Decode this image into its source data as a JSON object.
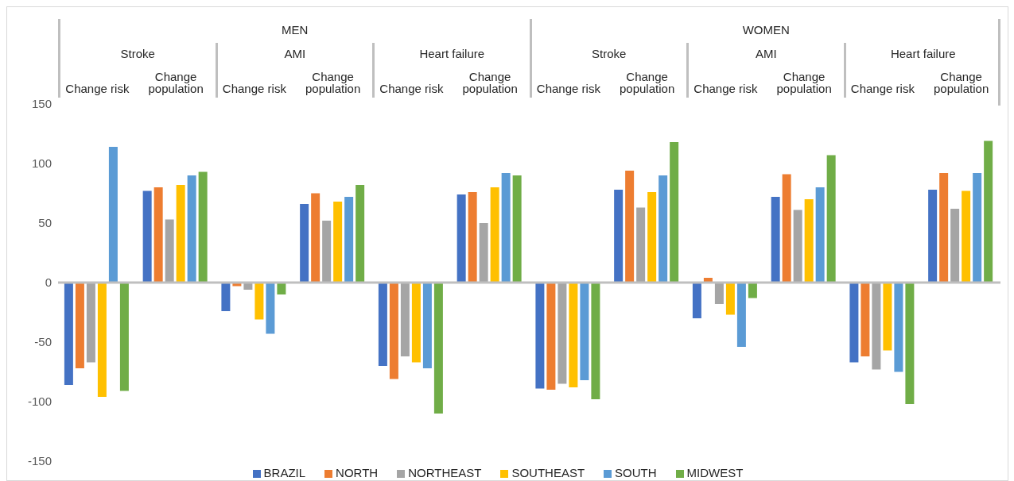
{
  "chart_data": {
    "type": "bar",
    "categories": [
      "Change risk",
      "Change population",
      "Change risk",
      "Change population",
      "Change risk",
      "Change population",
      "Change risk",
      "Change population",
      "Change risk",
      "Change population",
      "Change risk",
      "Change population"
    ],
    "annotations": [
      "MEN",
      "WOMEN",
      "Stroke",
      "AMI",
      "Heart failure",
      "Stroke",
      "AMI",
      "Heart failure"
    ],
    "series": [
      {
        "name": "BRAZIL",
        "color": "#4472c4",
        "values": [
          -86,
          77,
          -24,
          66,
          -70,
          74,
          -89,
          78,
          -30,
          72,
          -67,
          78
        ]
      },
      {
        "name": "NORTH",
        "color": "#ed7d31",
        "values": [
          -72,
          80,
          -3,
          75,
          -81,
          76,
          -90,
          94,
          4,
          91,
          -62,
          92
        ]
      },
      {
        "name": "NORTHEAST",
        "color": "#a5a5a5",
        "values": [
          -67,
          53,
          -6,
          52,
          -62,
          50,
          -85,
          63,
          -18,
          61,
          -73,
          62
        ]
      },
      {
        "name": "SOUTHEAST",
        "color": "#ffc000",
        "values": [
          -96,
          82,
          -31,
          68,
          -67,
          80,
          -88,
          76,
          -27,
          70,
          -57,
          77
        ]
      },
      {
        "name": "SOUTH",
        "color": "#5b9bd5",
        "values": [
          114,
          90,
          -43,
          72,
          -72,
          92,
          -82,
          90,
          -54,
          80,
          -75,
          92
        ]
      },
      {
        "name": "MIDWEST",
        "color": "#70ad47",
        "values": [
          -91,
          93,
          -10,
          82,
          -110,
          90,
          -98,
          118,
          -13,
          107,
          -102,
          119
        ]
      }
    ],
    "ylim": [
      -150,
      150
    ],
    "yticks": [
      -150,
      -100,
      -50,
      0,
      50,
      100,
      150
    ],
    "ref_lines": [
      {
        "axis": "y",
        "value": 0,
        "color": "#bfbfbf"
      }
    ],
    "grid": false,
    "legend": "bottom"
  }
}
